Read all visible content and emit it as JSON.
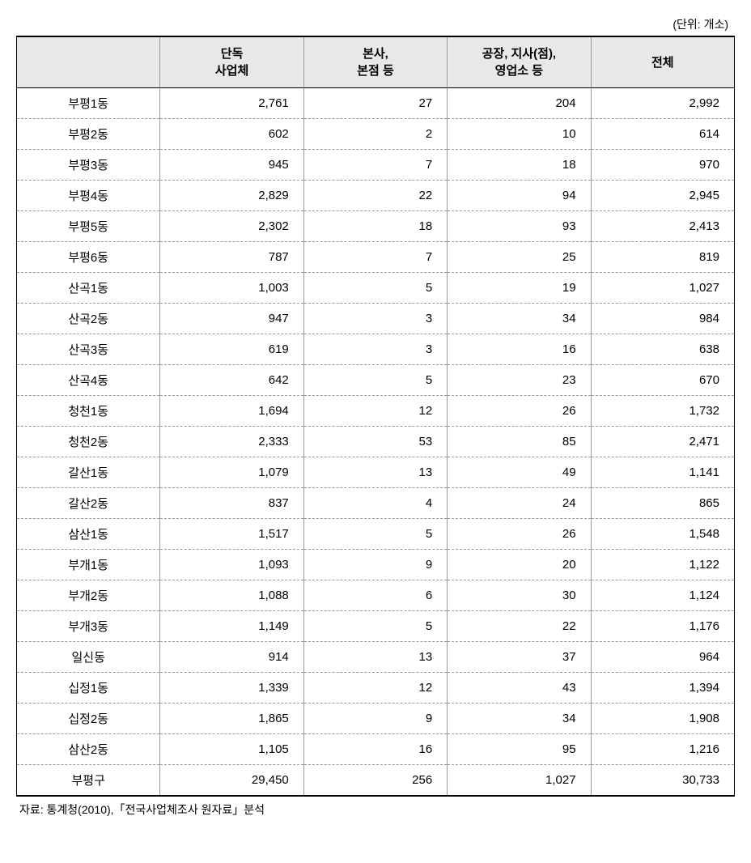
{
  "unit_label": "(단위: 개소)",
  "table": {
    "columns": [
      "",
      "단독\n사업체",
      "본사,\n본점 등",
      "공장, 지사(점),\n영업소 등",
      "전체"
    ],
    "header_bg": "#e8e8e8",
    "border_color": "#000000",
    "dashed_color": "#999999",
    "rows": [
      {
        "region": "부평1동",
        "col1": "2,761",
        "col2": "27",
        "col3": "204",
        "col4": "2,992"
      },
      {
        "region": "부평2동",
        "col1": "602",
        "col2": "2",
        "col3": "10",
        "col4": "614"
      },
      {
        "region": "부평3동",
        "col1": "945",
        "col2": "7",
        "col3": "18",
        "col4": "970"
      },
      {
        "region": "부평4동",
        "col1": "2,829",
        "col2": "22",
        "col3": "94",
        "col4": "2,945"
      },
      {
        "region": "부평5동",
        "col1": "2,302",
        "col2": "18",
        "col3": "93",
        "col4": "2,413"
      },
      {
        "region": "부평6동",
        "col1": "787",
        "col2": "7",
        "col3": "25",
        "col4": "819"
      },
      {
        "region": "산곡1동",
        "col1": "1,003",
        "col2": "5",
        "col3": "19",
        "col4": "1,027"
      },
      {
        "region": "산곡2동",
        "col1": "947",
        "col2": "3",
        "col3": "34",
        "col4": "984"
      },
      {
        "region": "산곡3동",
        "col1": "619",
        "col2": "3",
        "col3": "16",
        "col4": "638"
      },
      {
        "region": "산곡4동",
        "col1": "642",
        "col2": "5",
        "col3": "23",
        "col4": "670"
      },
      {
        "region": "청천1동",
        "col1": "1,694",
        "col2": "12",
        "col3": "26",
        "col4": "1,732"
      },
      {
        "region": "청천2동",
        "col1": "2,333",
        "col2": "53",
        "col3": "85",
        "col4": "2,471"
      },
      {
        "region": "갈산1동",
        "col1": "1,079",
        "col2": "13",
        "col3": "49",
        "col4": "1,141"
      },
      {
        "region": "갈산2동",
        "col1": "837",
        "col2": "4",
        "col3": "24",
        "col4": "865"
      },
      {
        "region": "삼산1동",
        "col1": "1,517",
        "col2": "5",
        "col3": "26",
        "col4": "1,548"
      },
      {
        "region": "부개1동",
        "col1": "1,093",
        "col2": "9",
        "col3": "20",
        "col4": "1,122"
      },
      {
        "region": "부개2동",
        "col1": "1,088",
        "col2": "6",
        "col3": "30",
        "col4": "1,124"
      },
      {
        "region": "부개3동",
        "col1": "1,149",
        "col2": "5",
        "col3": "22",
        "col4": "1,176"
      },
      {
        "region": "일신동",
        "col1": "914",
        "col2": "13",
        "col3": "37",
        "col4": "964"
      },
      {
        "region": "십정1동",
        "col1": "1,339",
        "col2": "12",
        "col3": "43",
        "col4": "1,394"
      },
      {
        "region": "십정2동",
        "col1": "1,865",
        "col2": "9",
        "col3": "34",
        "col4": "1,908"
      },
      {
        "region": "삼산2동",
        "col1": "1,105",
        "col2": "16",
        "col3": "95",
        "col4": "1,216"
      },
      {
        "region": "부평구",
        "col1": "29,450",
        "col2": "256",
        "col3": "1,027",
        "col4": "30,733"
      }
    ]
  },
  "source_note": "자료: 통계청(2010),「전국사업체조사 원자료」분석"
}
